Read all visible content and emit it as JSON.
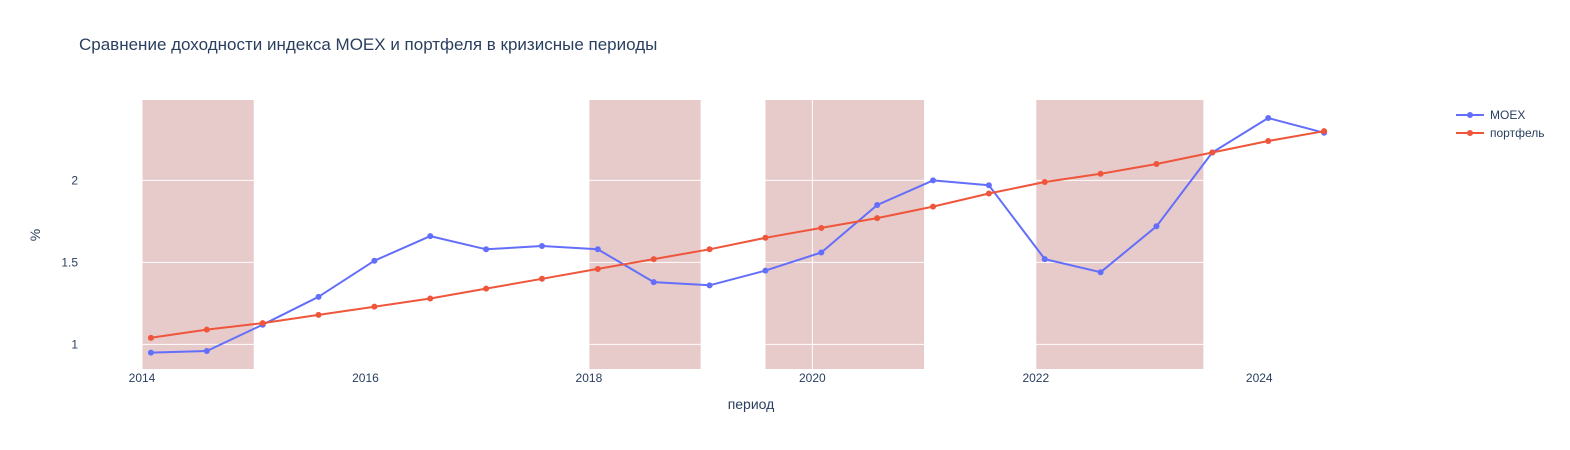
{
  "chart_data": {
    "type": "line",
    "title": "Сравнение доходности индекса MOEX и портфеля в кризисные периоды",
    "xlabel": "период",
    "ylabel": "%",
    "x_ticks": [
      "2014",
      "2016",
      "2018",
      "2020",
      "2022",
      "2024"
    ],
    "y_ticks": [
      "1",
      "1.5",
      "2"
    ],
    "xlim": [
      2014.0,
      2025.0
    ],
    "ylim": [
      0.85,
      2.49
    ],
    "legend_position": "top-right",
    "grid": true,
    "crisis_periods": [
      [
        2014.0,
        2015.0
      ],
      [
        2018.0,
        2019.0
      ],
      [
        2019.58,
        2021.0
      ],
      [
        2022.0,
        2023.5
      ]
    ],
    "x": [
      2014.08,
      2014.58,
      2015.08,
      2015.58,
      2016.08,
      2016.58,
      2017.08,
      2017.58,
      2018.08,
      2018.58,
      2019.08,
      2019.58,
      2020.08,
      2020.58,
      2021.08,
      2021.58,
      2022.08,
      2022.58,
      2023.08,
      2023.58,
      2024.08,
      2024.58
    ],
    "series": [
      {
        "name": "MOEX",
        "color": "#636efa",
        "values": [
          0.95,
          0.96,
          1.12,
          1.29,
          1.51,
          1.66,
          1.58,
          1.6,
          1.58,
          1.38,
          1.36,
          1.45,
          1.56,
          1.85,
          2.0,
          1.97,
          1.52,
          1.44,
          1.72,
          2.17,
          2.38,
          2.29
        ]
      },
      {
        "name": "портфель",
        "color": "#ef553b",
        "values": [
          1.04,
          1.09,
          1.13,
          1.18,
          1.23,
          1.28,
          1.34,
          1.4,
          1.46,
          1.52,
          1.58,
          1.65,
          1.71,
          1.77,
          1.84,
          1.92,
          1.99,
          2.04,
          2.1,
          2.17,
          2.24,
          2.3
        ]
      }
    ],
    "colors": {
      "crisis_band": "#e7caca",
      "grid": "#ffffff",
      "text": "#2a3f5f"
    }
  }
}
